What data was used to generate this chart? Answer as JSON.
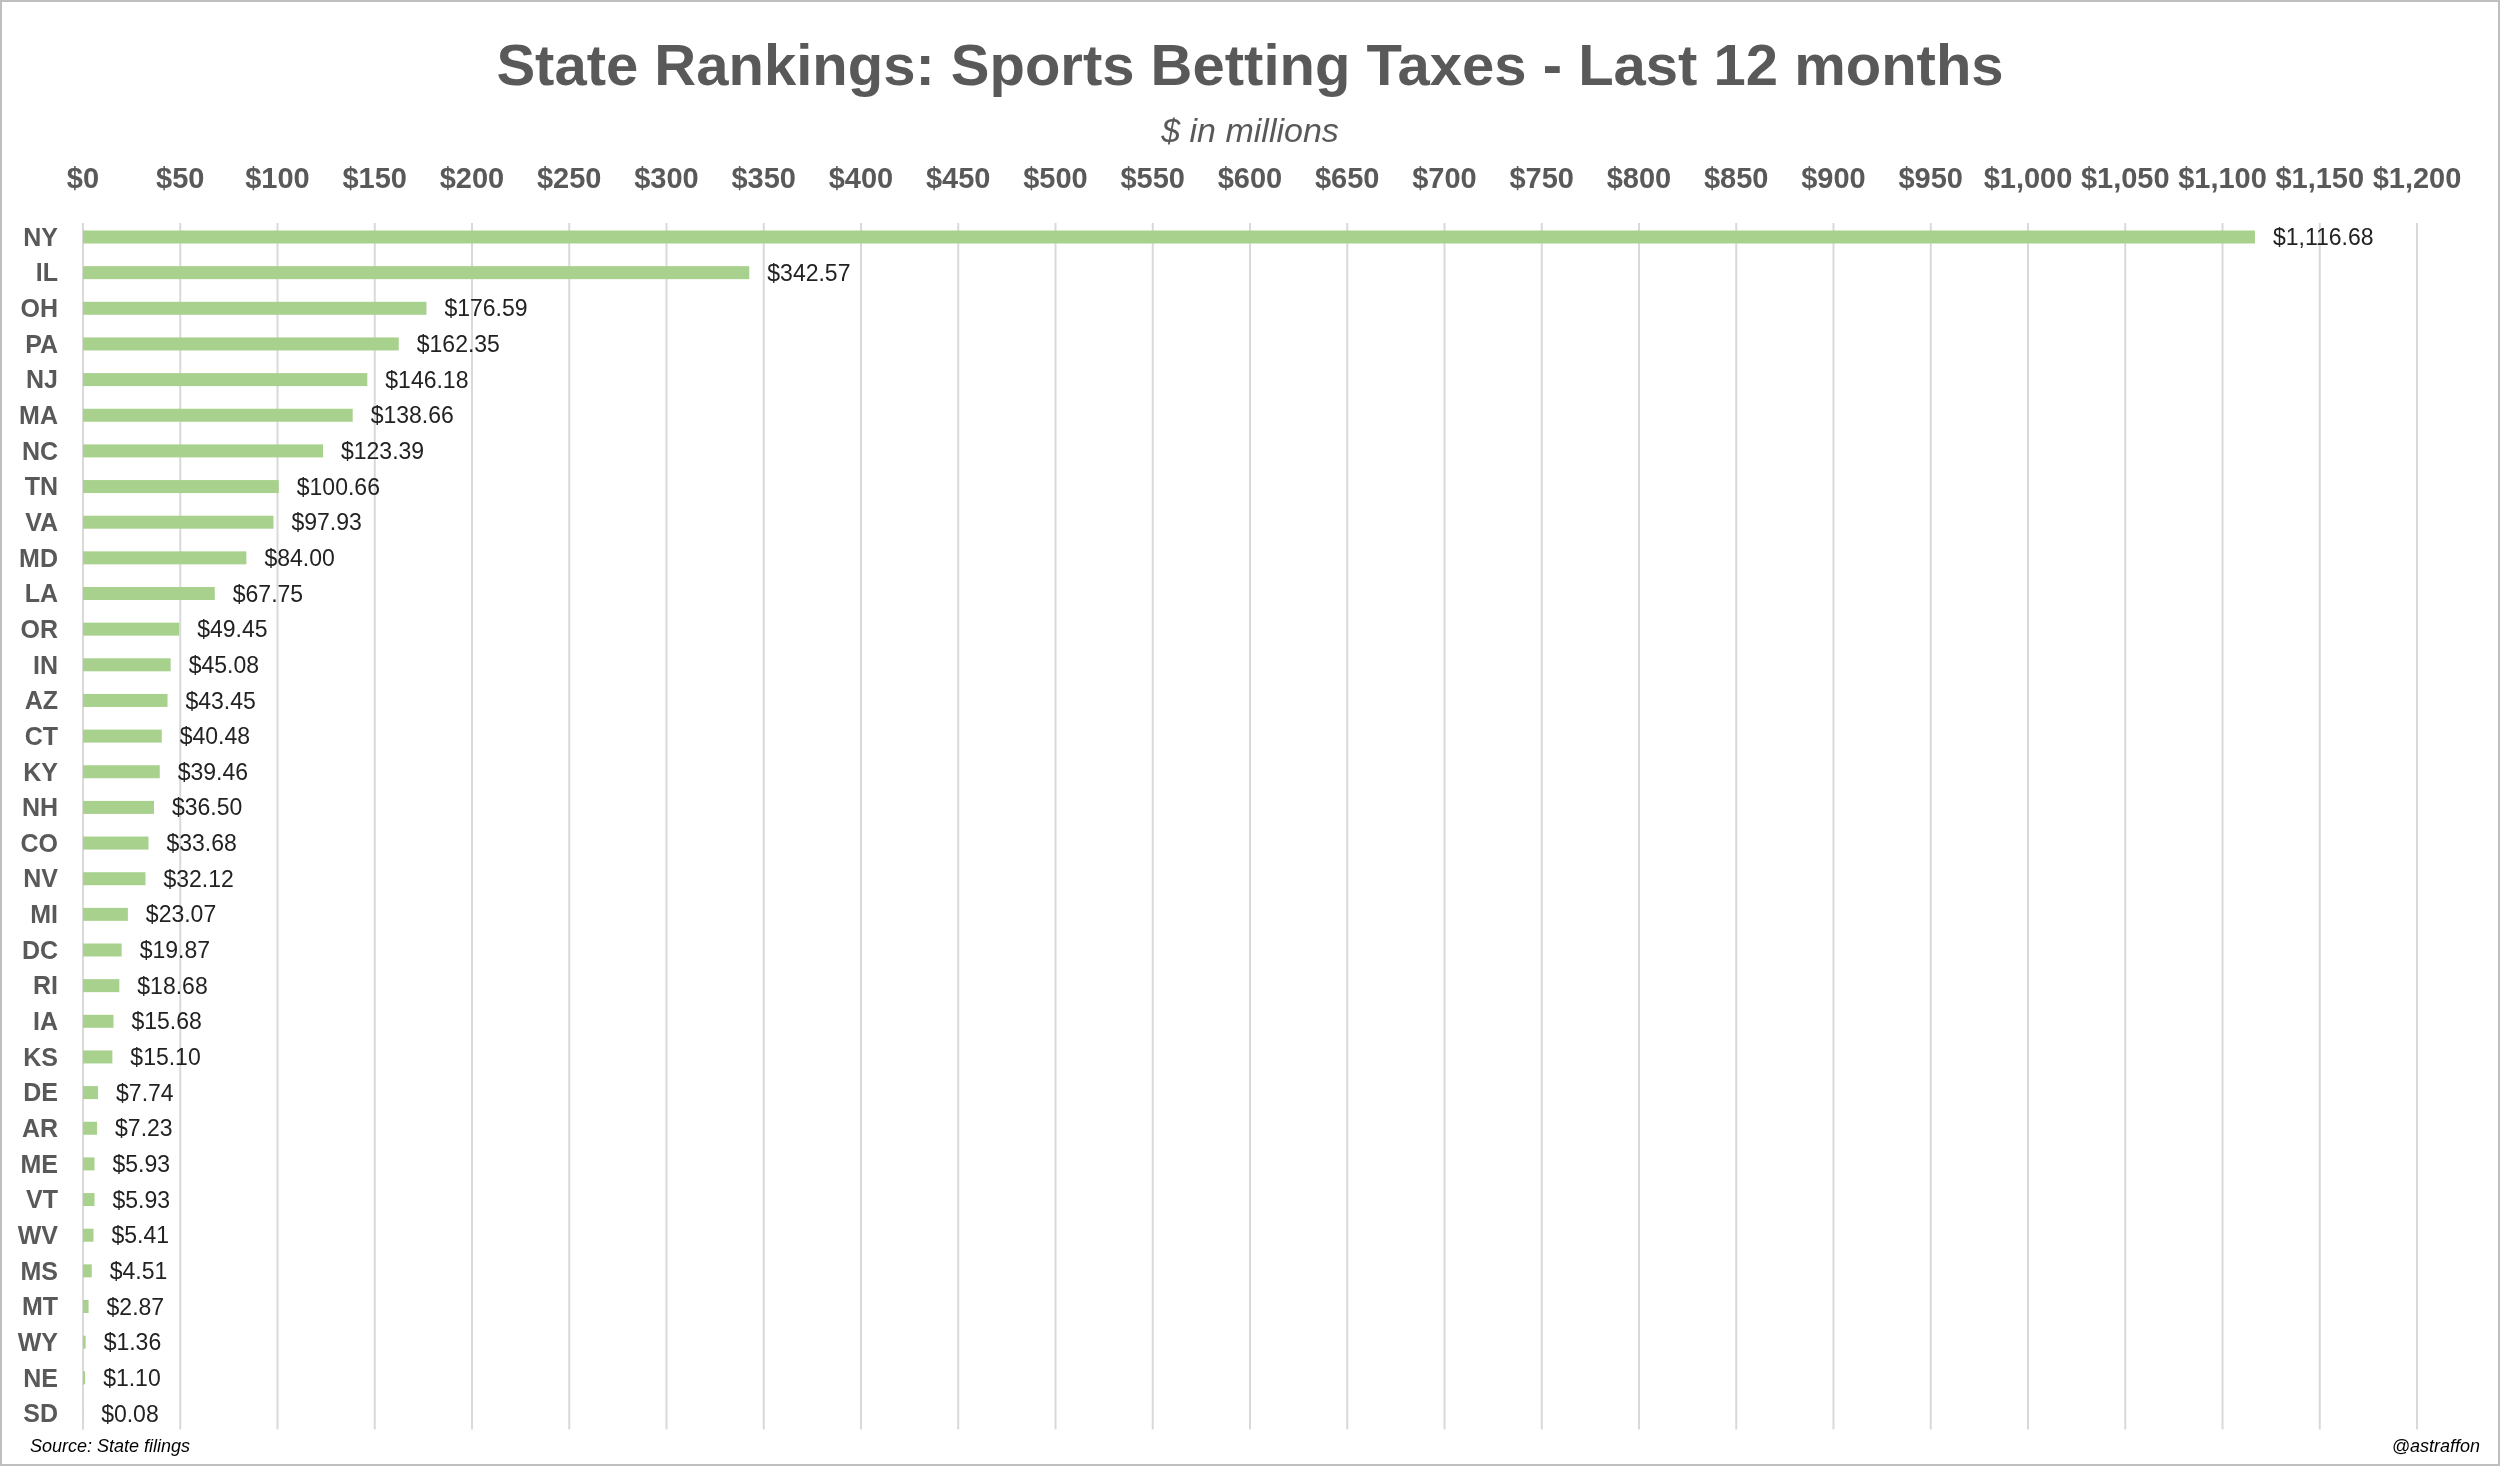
{
  "chart_data": {
    "type": "bar",
    "orientation": "horizontal",
    "title": "State Rankings: Sports Betting Taxes - Last 12 months",
    "subtitle": "$ in millions",
    "categories": [
      "NY",
      "IL",
      "OH",
      "PA",
      "NJ",
      "MA",
      "NC",
      "TN",
      "VA",
      "MD",
      "LA",
      "OR",
      "IN",
      "AZ",
      "CT",
      "KY",
      "NH",
      "CO",
      "NV",
      "MI",
      "DC",
      "RI",
      "IA",
      "KS",
      "DE",
      "AR",
      "ME",
      "VT",
      "WV",
      "MS",
      "MT",
      "WY",
      "NE",
      "SD"
    ],
    "values": [
      1116.68,
      342.57,
      176.59,
      162.35,
      146.18,
      138.66,
      123.39,
      100.66,
      97.93,
      84.0,
      67.75,
      49.45,
      45.08,
      43.45,
      40.48,
      39.46,
      36.5,
      33.68,
      32.12,
      23.07,
      19.87,
      18.68,
      15.68,
      15.1,
      7.74,
      7.23,
      5.93,
      5.93,
      5.41,
      4.51,
      2.87,
      1.36,
      1.1,
      0.08
    ],
    "value_labels": [
      "$1,116.68",
      "$342.57",
      "$176.59",
      "$162.35",
      "$146.18",
      "$138.66",
      "$123.39",
      "$100.66",
      "$97.93",
      "$84.00",
      "$67.75",
      "$49.45",
      "$45.08",
      "$43.45",
      "$40.48",
      "$39.46",
      "$36.50",
      "$33.68",
      "$32.12",
      "$23.07",
      "$19.87",
      "$18.68",
      "$15.68",
      "$15.10",
      "$7.74",
      "$7.23",
      "$5.93",
      "$5.93",
      "$5.41",
      "$4.51",
      "$2.87",
      "$1.36",
      "$1.10",
      "$0.08"
    ],
    "color": "#a9d18e",
    "xlim": [
      0,
      1200
    ],
    "xticks": [
      {
        "value": 0,
        "label": "$0"
      },
      {
        "value": 50,
        "label": "$50"
      },
      {
        "value": 100,
        "label": "$100"
      },
      {
        "value": 150,
        "label": "$150"
      },
      {
        "value": 200,
        "label": "$200"
      },
      {
        "value": 250,
        "label": "$250"
      },
      {
        "value": 300,
        "label": "$300"
      },
      {
        "value": 350,
        "label": "$350"
      },
      {
        "value": 400,
        "label": "$400"
      },
      {
        "value": 450,
        "label": "$450"
      },
      {
        "value": 500,
        "label": "$500"
      },
      {
        "value": 550,
        "label": "$550"
      },
      {
        "value": 600,
        "label": "$600"
      },
      {
        "value": 650,
        "label": "$650"
      },
      {
        "value": 700,
        "label": "$700"
      },
      {
        "value": 750,
        "label": "$750"
      },
      {
        "value": 800,
        "label": "$800"
      },
      {
        "value": 850,
        "label": "$850"
      },
      {
        "value": 900,
        "label": "$900"
      },
      {
        "value": 950,
        "label": "$950"
      },
      {
        "value": 1000,
        "label": "$1,000"
      },
      {
        "value": 1050,
        "label": "$1,050"
      },
      {
        "value": 1100,
        "label": "$1,100"
      },
      {
        "value": 1150,
        "label": "$1,150"
      },
      {
        "value": 1200,
        "label": "$1,200"
      }
    ],
    "grid": "x",
    "annotations": [
      "Source: State filings",
      "@astraffon"
    ]
  }
}
